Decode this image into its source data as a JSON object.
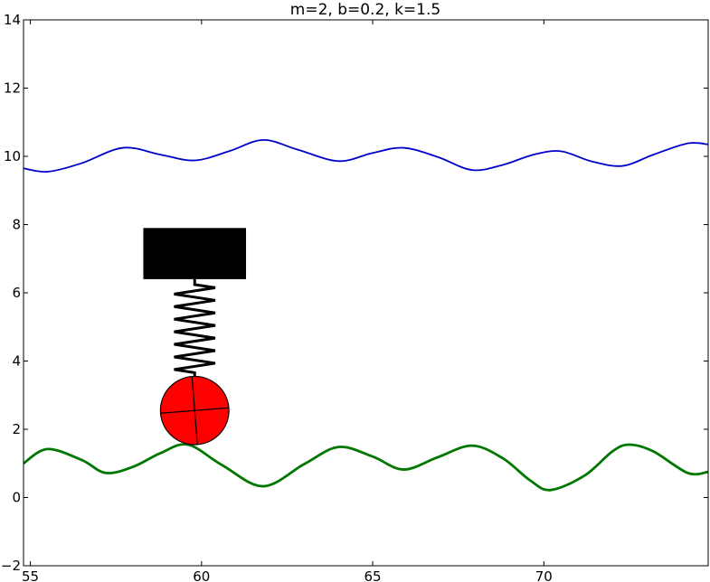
{
  "chart_data": {
    "type": "line",
    "title": "m=2, b=0.2, k=1.5",
    "xlabel": "",
    "ylabel": "",
    "xlim": [
      54.8,
      74.8
    ],
    "ylim": [
      -2,
      14
    ],
    "xticks": [
      55,
      60,
      65,
      70
    ],
    "yticks": [
      -2,
      0,
      2,
      4,
      6,
      8,
      10,
      12,
      14
    ],
    "grid": false,
    "legend": "none",
    "series": [
      {
        "color": "#0000cc",
        "x": [
          54.8,
          55.5,
          56.5,
          57.7,
          58.8,
          59.8,
          60.8,
          61.8,
          62.8,
          64.0,
          65.0,
          65.9,
          66.9,
          67.9,
          68.8,
          69.7,
          70.5,
          71.4,
          72.3,
          73.2,
          74.2,
          74.8
        ],
        "y": [
          9.65,
          9.55,
          9.8,
          10.25,
          10.05,
          9.88,
          10.15,
          10.48,
          10.2,
          9.86,
          10.1,
          10.25,
          9.98,
          9.6,
          9.75,
          10.05,
          10.15,
          9.85,
          9.72,
          10.05,
          10.38,
          10.35
        ]
      },
      {
        "color": "#007700",
        "x": [
          54.8,
          55.5,
          56.5,
          57.2,
          58.0,
          58.8,
          59.6,
          60.6,
          61.8,
          63.0,
          64.0,
          65.0,
          65.9,
          66.9,
          67.9,
          68.8,
          69.6,
          70.2,
          71.2,
          72.0,
          72.5,
          73.2,
          74.2,
          74.8
        ],
        "y": [
          1.0,
          1.42,
          1.1,
          0.72,
          0.9,
          1.3,
          1.55,
          0.95,
          0.33,
          0.98,
          1.48,
          1.2,
          0.82,
          1.18,
          1.52,
          1.15,
          0.5,
          0.22,
          0.65,
          1.35,
          1.55,
          1.35,
          0.72,
          0.75
        ]
      }
    ],
    "annotations": {
      "mass_block": {
        "x_range": [
          58.3,
          61.3
        ],
        "y_range": [
          6.4,
          7.9
        ],
        "color": "#000000"
      },
      "spring": {
        "x": 59.8,
        "y_range": [
          3.5,
          6.4
        ],
        "coils": 7,
        "color": "#000000"
      },
      "wheel": {
        "center": [
          59.8,
          2.55
        ],
        "radius": 1.0,
        "color": "#ff0000"
      }
    }
  }
}
